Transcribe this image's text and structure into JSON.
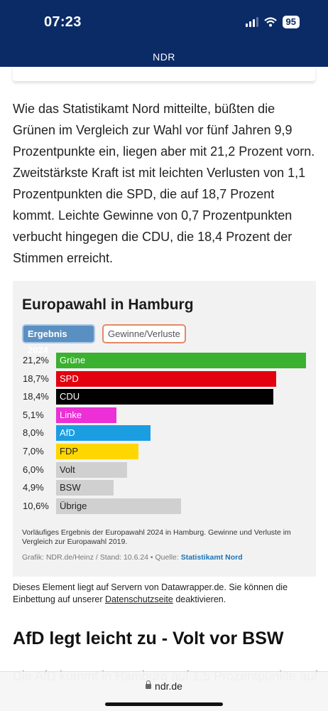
{
  "status_bar": {
    "time": "07:23",
    "battery": "95"
  },
  "header": {
    "brand": "NDR"
  },
  "article": {
    "paragraph": "Wie das Statistikamt Nord mitteilte, büßten die Grünen im Vergleich zur Wahl vor fünf Jahren 9,9 Prozentpunkte ein, liegen aber mit 21,2 Prozent vorn. Zweitstärkste Kraft ist mit leichten Verlusten von 1,1 Prozentpunkten die SPD, die auf 18,7 Prozent kommt. Leichte Gewinne von 0,7 Prozentpunkten verbucht hingegen die CDU, die 18,4 Prozent der Stimmen erreicht.",
    "section_heading": "AfD legt leicht zu - Volt vor BSW",
    "next_paragraph_start": "Die AfD kommt in Hamburg auf 1,5 Prozentpunkte auf"
  },
  "chart": {
    "title": "Europawahl in Hamburg",
    "tabs": {
      "active": "Ergebnis 2024",
      "inactive": "Gewinne/Verluste"
    },
    "note": "Vorläufiges Ergebnis der Europawahl 2024 in Hamburg. Gewinne und Verluste im Vergleich zur Europawahl 2019.",
    "source_prefix": "Grafik: NDR.de/Heinz / Stand: 10.6.24 • Quelle: ",
    "source_link": "Statistikamt Nord"
  },
  "chart_data": {
    "type": "bar",
    "title": "Europawahl in Hamburg",
    "categories": [
      "Grüne",
      "SPD",
      "CDU",
      "Linke",
      "AfD",
      "FDP",
      "Volt",
      "BSW",
      "Übrige"
    ],
    "values": [
      21.2,
      18.7,
      18.4,
      5.1,
      8.0,
      7.0,
      6.0,
      4.9,
      10.6
    ],
    "value_labels": [
      "21,2%",
      "18,7%",
      "18,4%",
      "5,1%",
      "8,0%",
      "7,0%",
      "6,0%",
      "4,9%",
      "10,6%"
    ],
    "colors": [
      "#3ab12f",
      "#e3000f",
      "#000000",
      "#ec2fd6",
      "#1b9de2",
      "#ffd700",
      "#d0d0d0",
      "#d0d0d0",
      "#d0d0d0"
    ],
    "label_colors": [
      "#ffffff",
      "#ffffff",
      "#ffffff",
      "#ffffff",
      "#ffffff",
      "#222222",
      "#222222",
      "#222222",
      "#222222"
    ],
    "xlim": [
      0,
      21.2
    ]
  },
  "embed": {
    "text_before": "Dieses Element liegt auf Servern von Datawrapper.de. Sie können die Einbettung auf unserer ",
    "link": "Datenschutzseite",
    "text_after": " deaktivieren."
  },
  "browser": {
    "url": "ndr.de"
  }
}
